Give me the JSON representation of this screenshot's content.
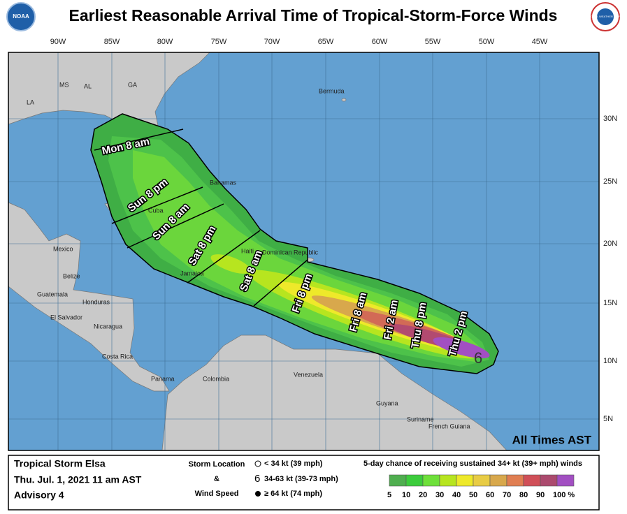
{
  "title": "Earliest Reasonable Arrival Time of Tropical-Storm-Force Winds",
  "logos": [
    "NOAA",
    "NATIONAL WEATHER SERVICE"
  ],
  "longitude_labels": [
    "90W",
    "85W",
    "80W",
    "75W",
    "70W",
    "65W",
    "60W",
    "55W",
    "50W",
    "45W"
  ],
  "latitude_labels": [
    "30N",
    "25N",
    "20N",
    "15N",
    "10N",
    "5N"
  ],
  "places": [
    "MS",
    "AL",
    "GA",
    "LA",
    "Bermuda",
    "Bahamas",
    "Cuba",
    "Mexico",
    "Belize",
    "Guatemala",
    "Honduras",
    "El Salvador",
    "Nicaragua",
    "Costa Rica",
    "Panama",
    "Colombia",
    "Venezuela",
    "Guyana",
    "Suriname",
    "French Guiana",
    "Jamaica",
    "Haiti",
    "Dominican Republic"
  ],
  "time_labels": [
    "Mon 8 am",
    "Sun 8 pm",
    "Sun 8 am",
    "Sat 8 pm",
    "Sat 8 am",
    "Fri 8 pm",
    "Fri 8 am",
    "Fri 2 am",
    "Thu 8 pm",
    "Thu 2 pm"
  ],
  "note": "All Times AST",
  "info": {
    "storm_name": "Tropical Storm Elsa",
    "date": "Thu. Jul. 1, 2021  11 am AST",
    "advisory": "Advisory 4"
  },
  "legend": {
    "storm_location": "Storm Location",
    "and": "&",
    "wind_speed": "Wind Speed",
    "symbols": [
      "< 34 kt (39 mph)",
      "34-63 kt (39-73 mph)",
      "≥ 64 kt (74 mph)"
    ],
    "colorbar_title": "5-day chance of receiving sustained 34+ kt (39+ mph) winds",
    "colorbar": [
      {
        "label": "5",
        "color": "#4fae4f"
      },
      {
        "label": "10",
        "color": "#3ccc3c"
      },
      {
        "label": "20",
        "color": "#6ee03a"
      },
      {
        "label": "30",
        "color": "#b7e51f"
      },
      {
        "label": "40",
        "color": "#eee92a"
      },
      {
        "label": "50",
        "color": "#e8cc45"
      },
      {
        "label": "60",
        "color": "#d8a84c"
      },
      {
        "label": "70",
        "color": "#e07e52"
      },
      {
        "label": "80",
        "color": "#d04f58"
      },
      {
        "label": "90",
        "color": "#ab4a6e"
      },
      {
        "label": "100 %",
        "color": "#a24fc2"
      }
    ]
  }
}
